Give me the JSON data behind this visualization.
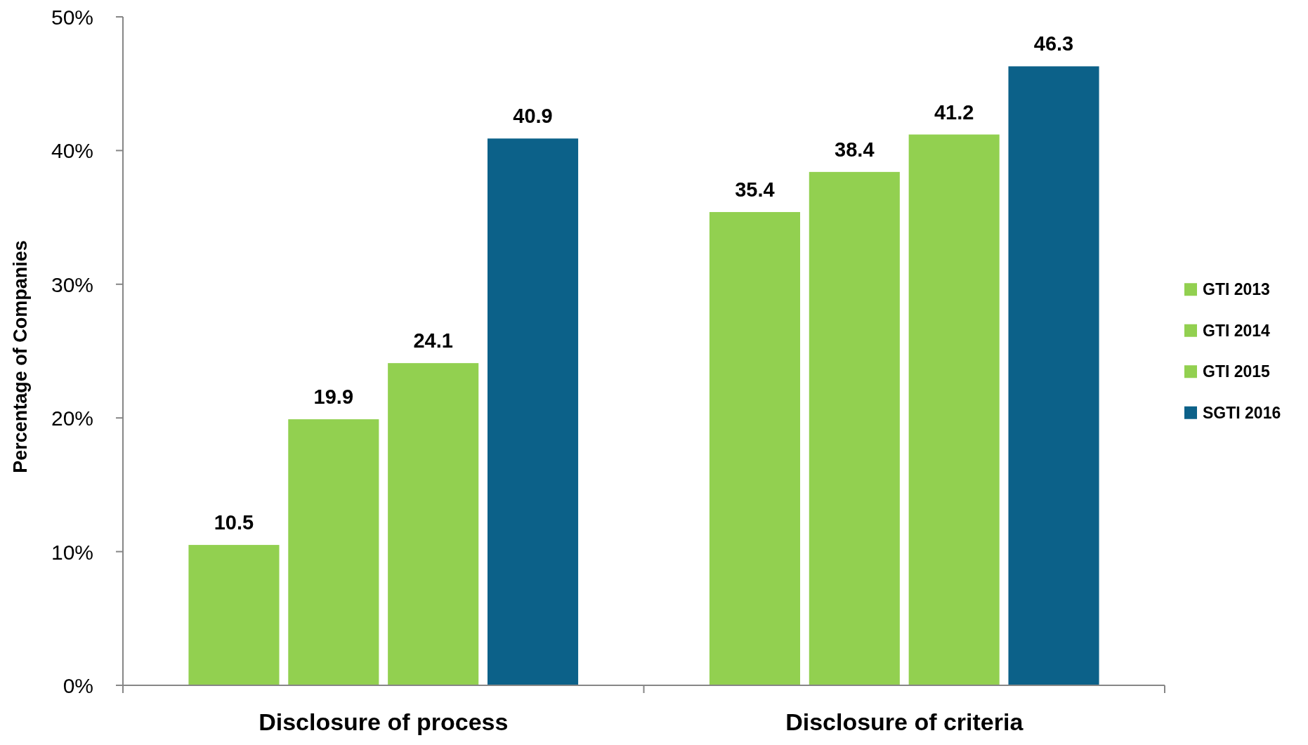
{
  "chart_data": {
    "type": "bar",
    "ylabel": "Percentage of Companies",
    "categories": [
      "Disclosure of process",
      "Disclosure of criteria"
    ],
    "series": [
      {
        "name": "GTI 2013",
        "color": "#92d050",
        "values": [
          10.5,
          35.4
        ]
      },
      {
        "name": "GTI 2014",
        "color": "#92d050",
        "values": [
          19.9,
          38.4
        ]
      },
      {
        "name": "GTI 2015",
        "color": "#92d050",
        "values": [
          24.1,
          41.2
        ]
      },
      {
        "name": "SGTI 2016",
        "color": "#0c6189",
        "values": [
          40.9,
          46.3
        ]
      }
    ],
    "ylim": [
      0,
      50
    ],
    "yticks": [
      {
        "value": 0,
        "label": "0%"
      },
      {
        "value": 10,
        "label": "10%"
      },
      {
        "value": 20,
        "label": "20%"
      },
      {
        "value": 30,
        "label": "30%"
      },
      {
        "value": 40,
        "label": "40%"
      },
      {
        "value": 50,
        "label": "50%"
      }
    ],
    "data_labels": true,
    "legend": "right"
  }
}
